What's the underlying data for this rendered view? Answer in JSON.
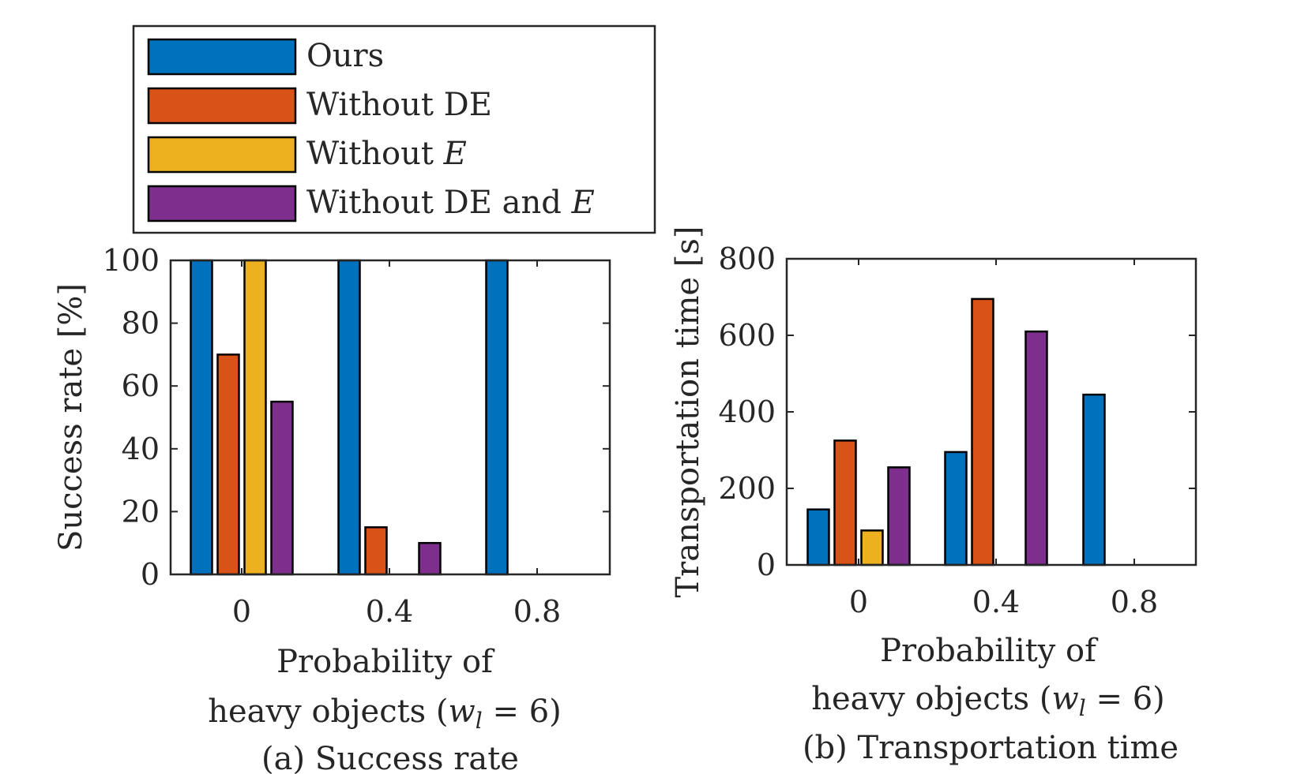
{
  "legend": [
    {
      "name": "Ours",
      "color": "#0072BD"
    },
    {
      "name": "Without DE",
      "color": "#D95319"
    },
    {
      "name": "Without E",
      "color": "#EDB120",
      "prefix": "Without ",
      "italic": "E"
    },
    {
      "name": "Without DE and E",
      "color": "#7E2F8E",
      "prefix": "Without DE and ",
      "italic": "E"
    }
  ],
  "chart_data": [
    {
      "type": "bar",
      "categories": [
        "0",
        "0.4",
        "0.8"
      ],
      "series": [
        {
          "name": "Ours",
          "color": "#0072BD",
          "values": [
            100,
            100,
            100
          ]
        },
        {
          "name": "Without DE",
          "color": "#D95319",
          "values": [
            70,
            15,
            0
          ]
        },
        {
          "name": "Without E",
          "color": "#EDB120",
          "values": [
            100,
            0,
            0
          ]
        },
        {
          "name": "Without DE and E",
          "color": "#7E2F8E",
          "values": [
            55,
            10,
            0
          ]
        }
      ],
      "ylabel": "Success rate [%]",
      "xlabel_line1": "Probability of",
      "xlabel_line2": "heavy objects (w_l = 6)",
      "caption": "(a) Success rate",
      "ylim": [
        0,
        100
      ],
      "yticks": [
        0,
        20,
        40,
        60,
        80,
        100
      ]
    },
    {
      "type": "bar",
      "categories": [
        "0",
        "0.4",
        "0.8"
      ],
      "series": [
        {
          "name": "Ours",
          "color": "#0072BD",
          "values": [
            145,
            295,
            445
          ]
        },
        {
          "name": "Without DE",
          "color": "#D95319",
          "values": [
            325,
            695,
            0
          ]
        },
        {
          "name": "Without E",
          "color": "#EDB120",
          "values": [
            90,
            0,
            0
          ]
        },
        {
          "name": "Without DE and E",
          "color": "#7E2F8E",
          "values": [
            255,
            610,
            0
          ]
        }
      ],
      "ylabel": "Transportation time [s]",
      "xlabel_line1": "Probability of",
      "xlabel_line2": "heavy objects (w_l = 6)",
      "caption": "(b) Transportation time",
      "ylim": [
        0,
        800
      ],
      "yticks": [
        0,
        200,
        400,
        600,
        800
      ]
    }
  ]
}
